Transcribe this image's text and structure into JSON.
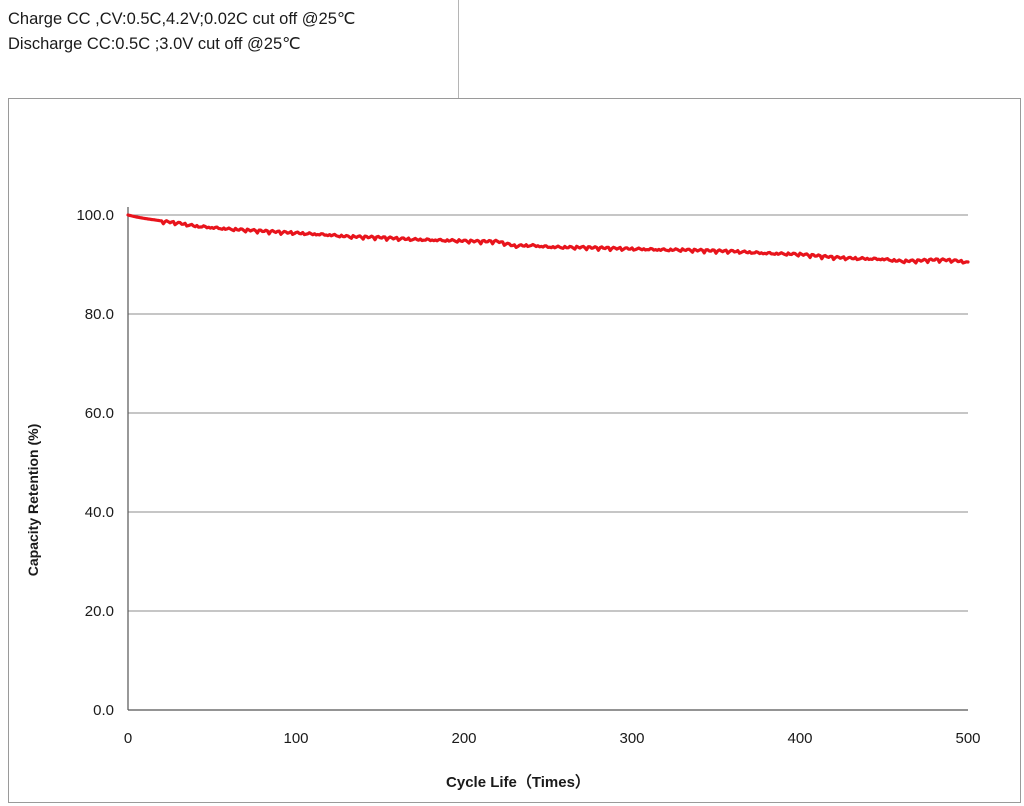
{
  "conditions": {
    "charge": "Charge CC ,CV:0.5C,4.2V;0.02C cut off @25℃",
    "discharge": "Discharge CC:0.5C ;3.0V cut off @25℃"
  },
  "colors": {
    "series": "#e8141c",
    "grid": "#8c8c8c",
    "axis": "#555555"
  },
  "chart_data": {
    "type": "line",
    "title": "",
    "xlabel": "Cycle Life（Times）",
    "ylabel": "Capacity Retention (%)",
    "xlim": [
      0,
      500
    ],
    "ylim": [
      0,
      100
    ],
    "x_ticks": [
      0,
      100,
      200,
      300,
      400,
      500
    ],
    "x_tick_labels": [
      "0",
      "100",
      "200",
      "300",
      "400",
      "500"
    ],
    "y_ticks": [
      0,
      20,
      40,
      60,
      80,
      100
    ],
    "y_tick_labels": [
      "0.0",
      "20.0",
      "40.0",
      "60.0",
      "80.0",
      "100.0"
    ],
    "grid": "horizontal",
    "legend": "none",
    "series": [
      {
        "x": [
          0,
          5,
          10,
          20,
          30,
          40,
          50,
          60,
          70,
          80,
          90,
          100,
          110,
          120,
          130,
          140,
          150,
          160,
          170,
          180,
          190,
          200,
          210,
          220,
          230,
          240,
          250,
          260,
          270,
          280,
          290,
          300,
          310,
          320,
          330,
          340,
          350,
          360,
          370,
          380,
          390,
          400,
          410,
          420,
          430,
          440,
          450,
          460,
          470,
          480,
          490,
          500
        ],
        "y": [
          100.0,
          99.6,
          99.3,
          98.8,
          98.4,
          97.8,
          97.5,
          97.2,
          97.0,
          96.8,
          96.6,
          96.4,
          96.2,
          96.0,
          95.7,
          95.6,
          95.5,
          95.3,
          95.1,
          95.0,
          94.9,
          94.8,
          94.7,
          94.7,
          93.8,
          93.9,
          93.6,
          93.5,
          93.5,
          93.4,
          93.3,
          93.2,
          93.1,
          93.0,
          93.0,
          92.9,
          92.8,
          92.7,
          92.5,
          92.3,
          92.2,
          92.1,
          91.8,
          91.5,
          91.3,
          91.2,
          91.1,
          90.7,
          90.8,
          91.0,
          90.9,
          90.5
        ]
      }
    ]
  }
}
